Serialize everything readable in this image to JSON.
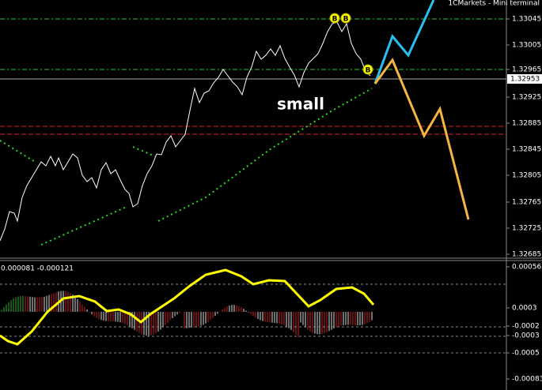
{
  "header": {
    "title": "1CMarkets - Mini terminal"
  },
  "annotation": "small",
  "markers": [
    "B",
    "B",
    "B"
  ],
  "price_axis": {
    "labels": [
      "1.33045",
      "1.33005",
      "1.32965",
      "1.32925",
      "1.32885",
      "1.32845",
      "1.32805",
      "1.32765",
      "1.32725",
      "1.32685"
    ],
    "current": "1.32953"
  },
  "indicator": {
    "caption": "0.000081 -0.000121",
    "labels": [
      "0.000563",
      "0.0003",
      "-0.0002",
      "-0.0003",
      "-0.0005",
      "-0.00083"
    ]
  }
}
